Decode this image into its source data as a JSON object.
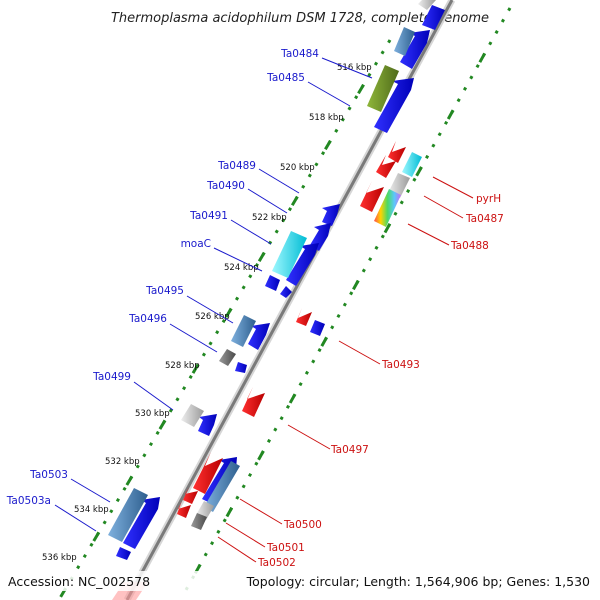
{
  "title": "Thermoplasma acidophilum DSM 1728, complete genome",
  "footer": {
    "accession": "Accession: NC_002578",
    "summary": "Topology: circular; Length: 1,564,906 bp; Genes: 1,530"
  },
  "colors": {
    "forward_strand": "#0000ee",
    "reverse_strand": "#ee0000",
    "label_forward": "#1a1acc",
    "label_reverse": "#cc1111",
    "backbone": "#888888",
    "tick_green": "#228822",
    "other_genes": [
      "#4682b4",
      "#6b8e23",
      "#00e5ff",
      "#c0c0c0",
      "#6a6a6a"
    ]
  },
  "kbp_ticks": [
    "516 kbp",
    "518 kbp",
    "520 kbp",
    "522 kbp",
    "524 kbp",
    "526 kbp",
    "528 kbp",
    "530 kbp",
    "532 kbp",
    "534 kbp",
    "536 kbp"
  ],
  "forward_labels": [
    "Ta0484",
    "Ta0485",
    "Ta0489",
    "Ta0490",
    "Ta0491",
    "moaC",
    "Ta0495",
    "Ta0496",
    "Ta0499",
    "Ta0503",
    "Ta0503a"
  ],
  "reverse_labels": [
    "pyrH",
    "Ta0487",
    "Ta0488",
    "Ta0493",
    "Ta0497",
    "Ta0500",
    "Ta0501",
    "Ta0502"
  ]
}
